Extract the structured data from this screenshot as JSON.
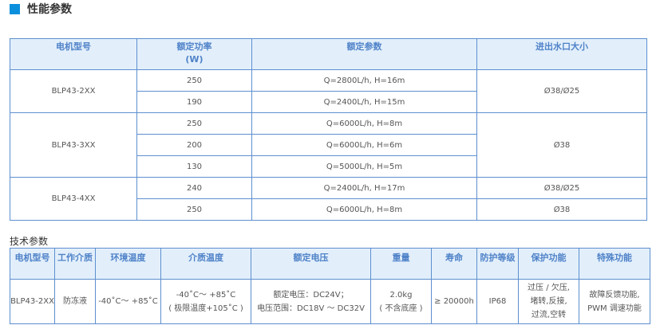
{
  "section_title": "性能参数",
  "section_icon_color": "#0a8fdc",
  "perf_table": {
    "headers": [
      "电机型号",
      "额定功率",
      "(W)",
      "额定参数",
      "进出水口大小"
    ],
    "groups": [
      {
        "model": "BLP43-2XX",
        "rows": [
          {
            "power": "250",
            "params": "Q=2800L/h, H=16m"
          },
          {
            "power": "190",
            "params": "Q=2400L/h, H=15m"
          }
        ],
        "port": "Ø38/Ø25"
      },
      {
        "model": "BLP43-3XX",
        "rows": [
          {
            "power": "250",
            "params": "Q=6000L/h, H=8m"
          },
          {
            "power": "200",
            "params": "Q=6000L/h, H=6m"
          },
          {
            "power": "130",
            "params": "Q=5000L/h, H=5m"
          }
        ],
        "port": "Ø38"
      },
      {
        "model": "BLP43-4XX",
        "rows": [
          {
            "power": "240",
            "params": "Q=2400L/h, H=17m",
            "port": "Ø38/Ø25"
          },
          {
            "power": "250",
            "params": "Q=6000L/h, H=8m",
            "port": "Ø38"
          }
        ]
      }
    ]
  },
  "tech_title": "技术参数",
  "tech_table": {
    "headers": [
      "电机型号",
      "工作介质",
      "环境温度",
      "介质温度",
      "额定电压",
      "重量",
      "寿命",
      "防护等级",
      "保护功能",
      "特殊功能"
    ],
    "row": {
      "model": "BLP43-2XX",
      "medium": "防冻液",
      "ambient": "-40˚C～ +85˚C",
      "medium_temp_1": "-40˚C～ +85˚C",
      "medium_temp_2": "( 极限温度+105˚C )",
      "voltage_1": "额定电压：DC24V；",
      "voltage_2": "电压范围：DC18V ～ DC32V",
      "weight_1": "2.0kg",
      "weight_2": "( 不含底座 )",
      "life": "≥ 20000h",
      "ip": "IP68",
      "protect_1": "过压 / 欠压,",
      "protect_2": "堵转,反接,",
      "protect_3": "过流,空转",
      "special_1": "故障反馈功能,",
      "special_2": "PWM 调速功能"
    }
  }
}
